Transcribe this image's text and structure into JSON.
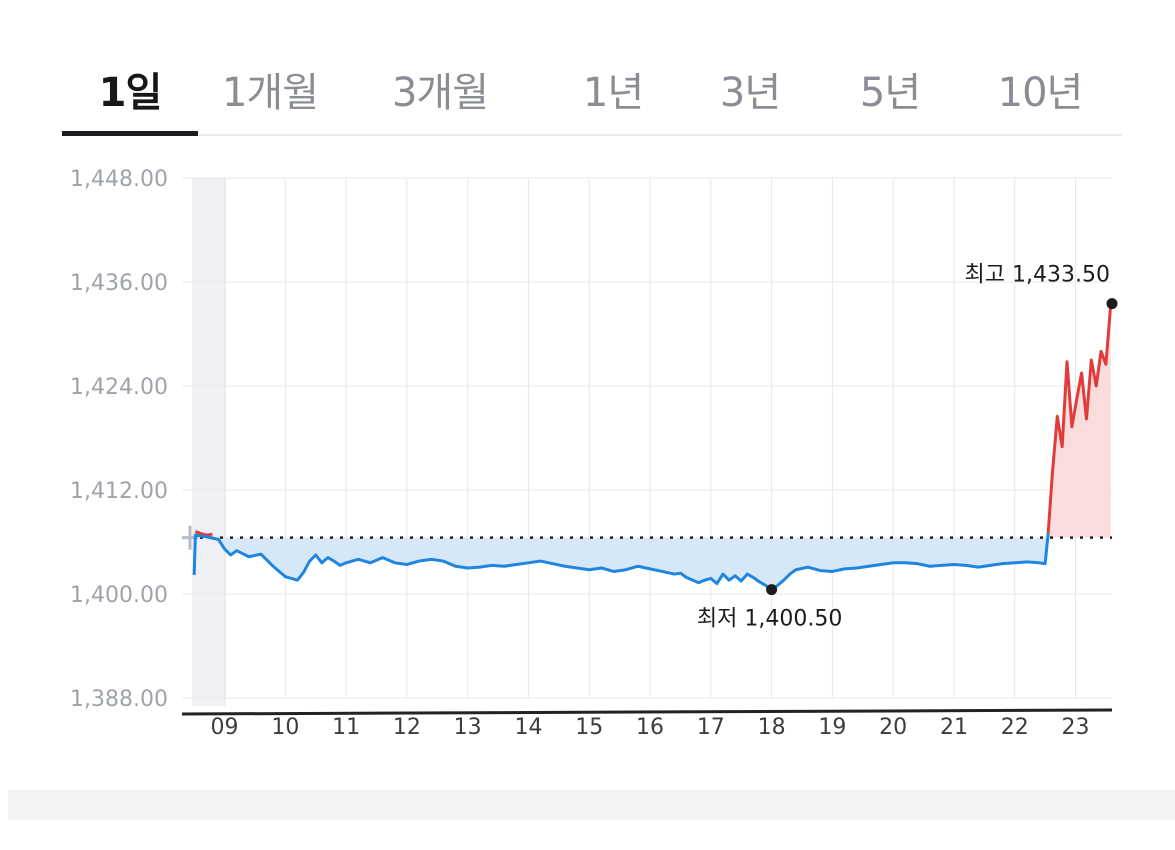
{
  "tabs": [
    {
      "label": "1일",
      "active": true
    },
    {
      "label": "1개월",
      "active": false
    },
    {
      "label": "3개월",
      "active": false
    },
    {
      "label": "1년",
      "active": false
    },
    {
      "label": "3년",
      "active": false
    },
    {
      "label": "5년",
      "active": false
    },
    {
      "label": "10년",
      "active": false
    }
  ],
  "colors": {
    "up": "#e23b3b",
    "down": "#1e86e0",
    "up_fill": "#fbdcdc",
    "down_fill": "#d6e8f8",
    "grid": "#e6e7ea",
    "axis_text": "#9ea3aa"
  },
  "chart_data": {
    "type": "line",
    "title": "",
    "xlabel": "",
    "ylabel": "",
    "ylim": [
      1388,
      1448
    ],
    "xlim": [
      8.3,
      23.6
    ],
    "grid": true,
    "y_ticks": [
      1448,
      1436,
      1424,
      1412,
      1400,
      1388
    ],
    "y_tick_labels": [
      "1,448.00",
      "1,436.00",
      "1,424.00",
      "1,412.00",
      "1,400.00",
      "1,388.00"
    ],
    "x_ticks": [
      9,
      10,
      11,
      12,
      13,
      14,
      15,
      16,
      17,
      18,
      19,
      20,
      21,
      22,
      23
    ],
    "x_tick_labels": [
      "09",
      "10",
      "11",
      "12",
      "13",
      "14",
      "15",
      "16",
      "17",
      "18",
      "19",
      "20",
      "21",
      "22",
      "23"
    ],
    "reference_value": 1406.5,
    "series": [
      {
        "color_role": "up",
        "x": [
          8.52,
          8.6,
          8.7,
          8.8
        ],
        "y": [
          1407.2,
          1407.0,
          1406.8,
          1406.9
        ]
      },
      {
        "color_role": "down",
        "x": [
          8.5,
          8.52,
          8.7,
          8.9,
          9.0,
          9.1,
          9.2,
          9.4,
          9.6,
          9.8,
          9.9,
          10.0,
          10.2,
          10.3,
          10.4,
          10.5,
          10.6,
          10.7,
          10.8,
          10.9,
          11.0,
          11.2,
          11.4,
          11.6,
          11.8,
          12.0,
          12.2,
          12.4,
          12.6,
          12.8,
          13.0,
          13.2,
          13.4,
          13.6,
          13.8,
          14.0,
          14.2,
          14.4,
          14.6,
          14.8,
          15.0,
          15.2,
          15.4,
          15.6,
          15.8,
          16.0,
          16.2,
          16.4,
          16.5,
          16.6,
          16.7,
          16.8,
          16.9,
          17.0,
          17.1,
          17.2,
          17.3,
          17.4,
          17.5,
          17.6,
          17.7,
          17.8,
          17.9,
          18.0,
          18.1,
          18.2,
          18.3,
          18.4,
          18.6,
          18.8,
          19.0,
          19.2,
          19.4,
          19.6,
          19.8,
          20.0,
          20.2,
          20.4,
          20.6,
          20.8,
          21.0,
          21.2,
          21.4,
          21.6,
          21.8,
          22.0,
          22.2,
          22.4,
          22.5,
          22.55
        ],
        "y": [
          1402.2,
          1406.8,
          1406.6,
          1406.3,
          1405.2,
          1404.5,
          1405.0,
          1404.3,
          1404.6,
          1403.2,
          1402.6,
          1402.0,
          1401.6,
          1402.5,
          1403.8,
          1404.5,
          1403.6,
          1404.2,
          1403.8,
          1403.3,
          1403.6,
          1404.0,
          1403.6,
          1404.2,
          1403.6,
          1403.4,
          1403.8,
          1404.0,
          1403.8,
          1403.2,
          1403.0,
          1403.1,
          1403.3,
          1403.2,
          1403.4,
          1403.6,
          1403.8,
          1403.5,
          1403.2,
          1403.0,
          1402.8,
          1403.0,
          1402.6,
          1402.8,
          1403.2,
          1402.9,
          1402.6,
          1402.3,
          1402.4,
          1401.9,
          1401.6,
          1401.3,
          1401.6,
          1401.8,
          1401.2,
          1402.3,
          1401.6,
          1402.1,
          1401.5,
          1402.3,
          1401.9,
          1401.4,
          1401.0,
          1400.5,
          1401.0,
          1401.6,
          1402.3,
          1402.8,
          1403.1,
          1402.7,
          1402.6,
          1402.9,
          1403.0,
          1403.2,
          1403.4,
          1403.6,
          1403.6,
          1403.5,
          1403.2,
          1403.3,
          1403.4,
          1403.3,
          1403.1,
          1403.3,
          1403.5,
          1403.6,
          1403.7,
          1403.6,
          1403.5,
          1407.0
        ]
      },
      {
        "color_role": "up",
        "x": [
          22.55,
          22.62,
          22.7,
          22.78,
          22.86,
          22.94,
          23.02,
          23.1,
          23.18,
          23.26,
          23.34,
          23.42,
          23.5,
          23.58
        ],
        "y": [
          1407.0,
          1414.0,
          1420.5,
          1417.0,
          1426.8,
          1419.3,
          1422.5,
          1425.5,
          1420.2,
          1427.0,
          1424.0,
          1428.0,
          1426.5,
          1433.5
        ]
      }
    ],
    "annotations": [
      {
        "label": "최고 1,433.50",
        "x": 23.6,
        "y": 1433.5
      },
      {
        "label": "최저 1,400.50",
        "x": 18.0,
        "y": 1400.5
      }
    ]
  }
}
